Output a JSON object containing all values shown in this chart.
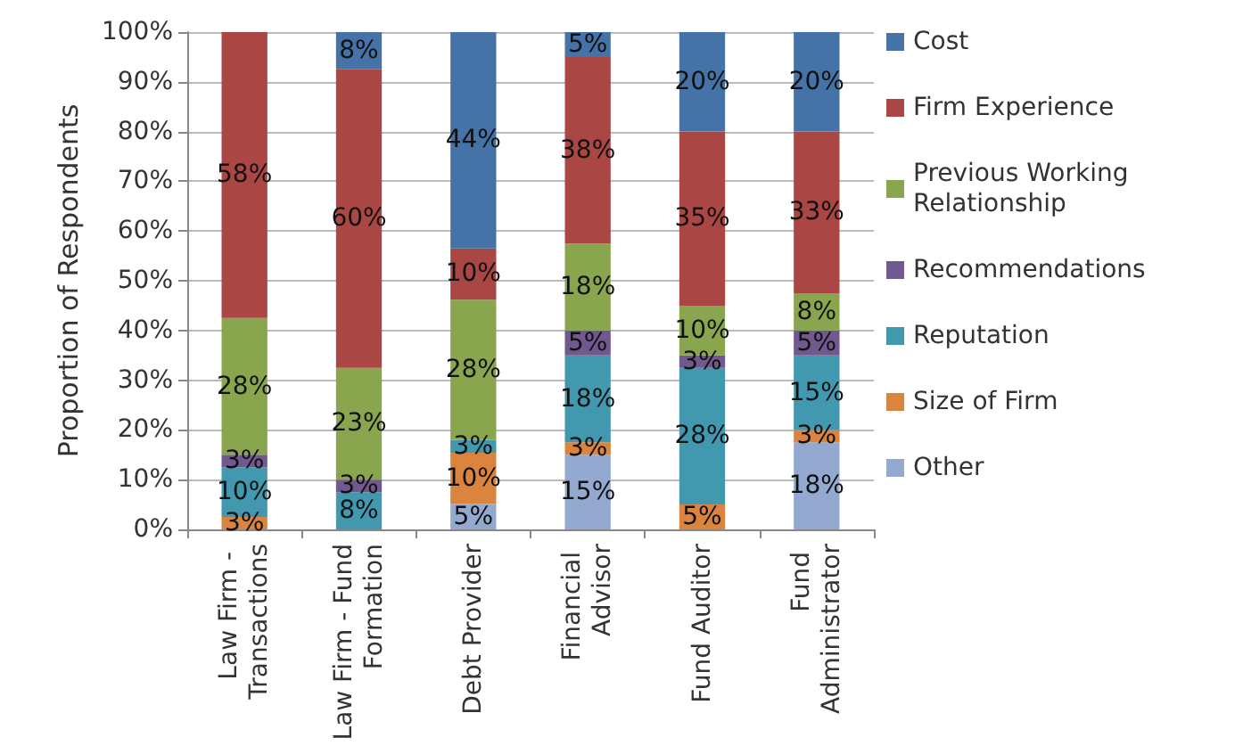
{
  "chart_data": {
    "type": "bar",
    "stacked": true,
    "ylabel": "Proportion of Respondents",
    "categories": [
      "Law Firm - Transactions",
      "Law Firm - Fund Formation",
      "Debt Provider",
      "Financial Advisor",
      "Fund Auditor",
      "Fund Administrator"
    ],
    "series": [
      {
        "name": "Other",
        "color": "#93a9cf",
        "values": [
          null,
          null,
          5.1,
          15,
          null,
          17.5
        ],
        "value_labels": [
          null,
          null,
          "5%",
          "15%",
          null,
          "18%"
        ]
      },
      {
        "name": "Size of Firm",
        "color": "#db843d",
        "values": [
          2.5,
          null,
          10.3,
          2.5,
          5,
          2.5
        ],
        "value_labels": [
          "3%",
          null,
          "10%",
          "3%",
          "5%",
          "3%"
        ]
      },
      {
        "name": "Reputation",
        "color": "#4198af",
        "values": [
          10,
          7.5,
          2.6,
          17.5,
          27.5,
          15
        ],
        "value_labels": [
          "10%",
          "8%",
          "3%",
          "18%",
          "28%",
          "15%"
        ]
      },
      {
        "name": "Recommendations",
        "color": "#71588f",
        "values": [
          2.5,
          2.5,
          null,
          5,
          2.5,
          5
        ],
        "value_labels": [
          "3%",
          "3%",
          null,
          "5%",
          "3%",
          "5%"
        ]
      },
      {
        "name": "Previous Working Relationship",
        "color": "#89a54e",
        "values": [
          27.5,
          22.5,
          28.2,
          17.5,
          10,
          7.5
        ],
        "value_labels": [
          "28%",
          "23%",
          "28%",
          "18%",
          "10%",
          "8%"
        ]
      },
      {
        "name": "Firm Experience",
        "color": "#aa4643",
        "values": [
          57.5,
          60,
          10.3,
          37.5,
          35,
          32.5
        ],
        "value_labels": [
          "58%",
          "60%",
          "10%",
          "38%",
          "35%",
          "33%"
        ]
      },
      {
        "name": "Cost",
        "color": "#4572a7",
        "values": [
          null,
          7.5,
          43.5,
          5,
          20,
          20
        ],
        "value_labels": [
          null,
          "8%",
          "44%",
          "5%",
          "20%",
          "20%"
        ]
      }
    ],
    "ylim": [
      0,
      100
    ],
    "yticks": [
      {
        "value": 0,
        "label": "0%"
      },
      {
        "value": 10,
        "label": "10%"
      },
      {
        "value": 20,
        "label": "20%"
      },
      {
        "value": 30,
        "label": "30%"
      },
      {
        "value": 40,
        "label": "40%"
      },
      {
        "value": 50,
        "label": "50%"
      },
      {
        "value": 60,
        "label": "60%"
      },
      {
        "value": 70,
        "label": "70%"
      },
      {
        "value": 80,
        "label": "80%"
      },
      {
        "value": 90,
        "label": "90%"
      },
      {
        "value": 100,
        "label": "100%"
      }
    ],
    "grid": "y",
    "legend": "right"
  }
}
